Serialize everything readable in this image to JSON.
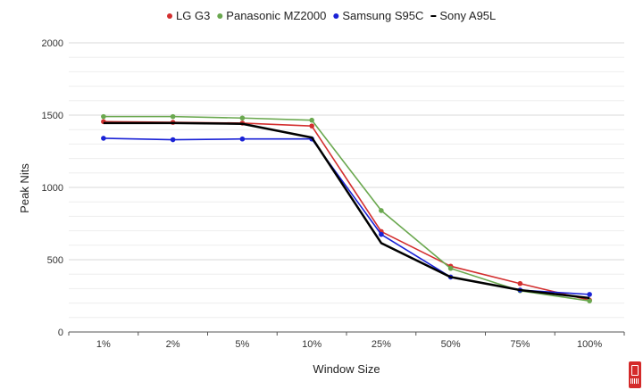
{
  "chart_data": {
    "type": "line",
    "title": "",
    "xlabel": "Window Size",
    "ylabel": "Peak Nits",
    "categories": [
      "1%",
      "2%",
      "5%",
      "10%",
      "25%",
      "50%",
      "75%",
      "100%"
    ],
    "ylim": [
      0,
      2000
    ],
    "yticks": [
      "0",
      "500",
      "1000",
      "1500",
      "2000"
    ],
    "grid": true,
    "legend_position": "top",
    "series": [
      {
        "name": "LG G3",
        "color": "#d32f2f",
        "marker": "circle",
        "values": [
          1455,
          1450,
          1445,
          1425,
          695,
          455,
          335,
          220
        ]
      },
      {
        "name": "Panasonic MZ2000",
        "color": "#6aa84f",
        "marker": "circle",
        "values": [
          1490,
          1490,
          1480,
          1465,
          840,
          440,
          285,
          215
        ]
      },
      {
        "name": "Samsung S95C",
        "color": "#1a22d6",
        "marker": "circle",
        "values": [
          1340,
          1330,
          1335,
          1335,
          675,
          380,
          290,
          260
        ]
      },
      {
        "name": "Sony A95L",
        "color": "#000000",
        "marker": "none",
        "values": [
          1445,
          1445,
          1440,
          1345,
          615,
          380,
          290,
          235
        ]
      }
    ]
  }
}
